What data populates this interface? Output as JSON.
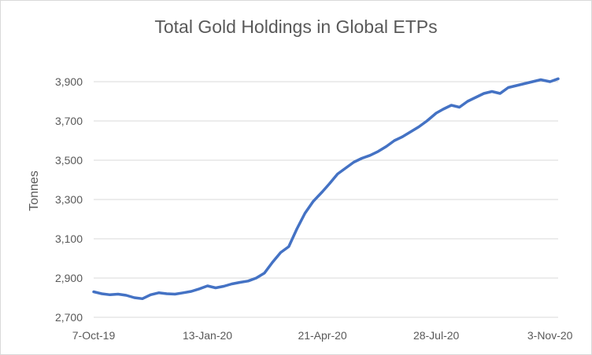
{
  "chart_data": {
    "type": "line",
    "title": "Total Gold Holdings in Global ETPs",
    "xlabel": "",
    "ylabel": "Tonnes",
    "ylim": [
      2700,
      4000
    ],
    "yticks": [
      2700,
      2900,
      3100,
      3300,
      3500,
      3700,
      3900
    ],
    "ytick_labels": [
      "2,700",
      "2,900",
      "3,100",
      "3,300",
      "3,500",
      "3,700",
      "3,900"
    ],
    "xlim": [
      "2019-10-07",
      "2020-11-10"
    ],
    "xticks": [
      "2019-10-07",
      "2020-01-13",
      "2020-04-21",
      "2020-07-28",
      "2020-11-03"
    ],
    "xtick_labels": [
      "7-Oct-19",
      "13-Jan-20",
      "21-Apr-20",
      "28-Jul-20",
      "3-Nov-20"
    ],
    "grid": "horizontal",
    "legend": "none",
    "series": [
      {
        "color": "#4472c4",
        "x": [
          "2019-10-07",
          "2019-10-14",
          "2019-10-21",
          "2019-10-28",
          "2019-11-04",
          "2019-11-11",
          "2019-11-18",
          "2019-11-25",
          "2019-12-02",
          "2019-12-09",
          "2019-12-16",
          "2019-12-23",
          "2019-12-30",
          "2020-01-06",
          "2020-01-13",
          "2020-01-20",
          "2020-01-27",
          "2020-02-03",
          "2020-02-10",
          "2020-02-17",
          "2020-02-24",
          "2020-03-02",
          "2020-03-09",
          "2020-03-16",
          "2020-03-23",
          "2020-03-30",
          "2020-04-06",
          "2020-04-13",
          "2020-04-21",
          "2020-04-27",
          "2020-05-04",
          "2020-05-11",
          "2020-05-18",
          "2020-05-25",
          "2020-06-01",
          "2020-06-08",
          "2020-06-15",
          "2020-06-22",
          "2020-06-29",
          "2020-07-06",
          "2020-07-13",
          "2020-07-20",
          "2020-07-28",
          "2020-08-03",
          "2020-08-10",
          "2020-08-17",
          "2020-08-24",
          "2020-08-31",
          "2020-09-07",
          "2020-09-14",
          "2020-09-21",
          "2020-09-28",
          "2020-10-05",
          "2020-10-12",
          "2020-10-19",
          "2020-10-26",
          "2020-11-03",
          "2020-11-10"
        ],
        "values": [
          2830,
          2820,
          2815,
          2818,
          2812,
          2800,
          2795,
          2815,
          2825,
          2820,
          2818,
          2825,
          2832,
          2845,
          2860,
          2850,
          2858,
          2870,
          2878,
          2885,
          2900,
          2925,
          2980,
          3030,
          3060,
          3150,
          3230,
          3290,
          3340,
          3380,
          3430,
          3460,
          3490,
          3510,
          3525,
          3545,
          3570,
          3600,
          3620,
          3645,
          3670,
          3700,
          3740,
          3760,
          3780,
          3770,
          3800,
          3820,
          3840,
          3850,
          3840,
          3870,
          3880,
          3890,
          3900,
          3910,
          3900,
          3915
        ]
      }
    ]
  }
}
